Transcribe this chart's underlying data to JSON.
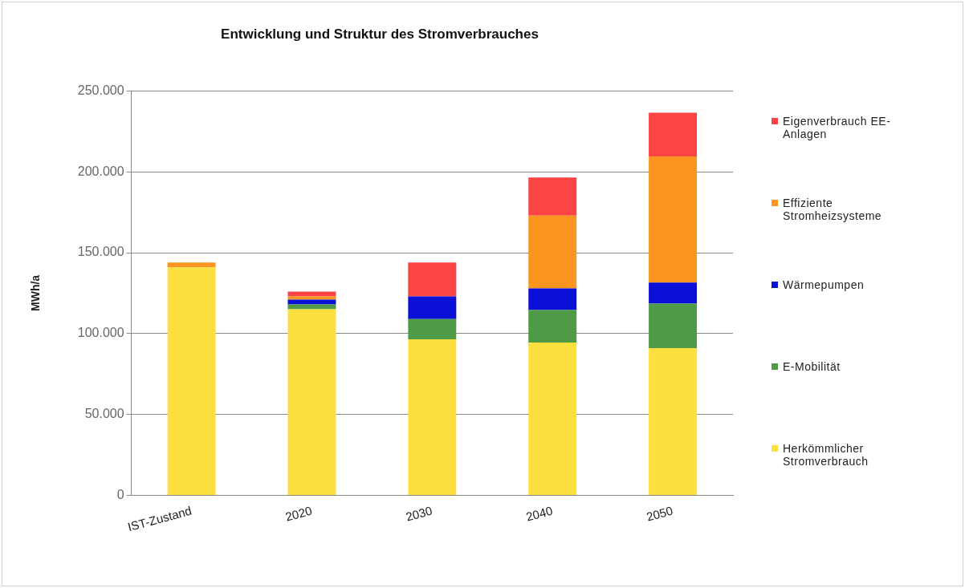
{
  "chart_data": {
    "type": "bar",
    "title": "Entwicklung und Struktur des Stromverbrauches",
    "ylabel": "MWh/a",
    "categories": [
      "IST-Zustand",
      "2020",
      "2030",
      "2040",
      "2050"
    ],
    "stacked": true,
    "series": [
      {
        "name": "Herkömmlicher Stromverbrauch",
        "color": "#fde03f",
        "values": [
          141000,
          115000,
          96500,
          94500,
          91000
        ]
      },
      {
        "name": "E-Mobilität",
        "color": "#4f9a47",
        "values": [
          null,
          3000,
          12500,
          20000,
          27500
        ]
      },
      {
        "name": "Wärmepumpen",
        "color": "#0a10d6",
        "values": [
          null,
          3000,
          14000,
          13500,
          13000
        ]
      },
      {
        "name": "Effiziente Stromheizsysteme",
        "color": "#fb951f",
        "values": [
          3000,
          2000,
          null,
          45000,
          78000
        ]
      },
      {
        "name": "Eigenverbrauch EE-Anlagen",
        "color": "#fb4444",
        "values": [
          null,
          3000,
          21000,
          23500,
          27000
        ]
      }
    ],
    "ylim": [
      0,
      250000
    ],
    "yticks": [
      {
        "value": 0,
        "label": "0"
      },
      {
        "value": 50000,
        "label": "50.000"
      },
      {
        "value": 100000,
        "label": "100.000"
      },
      {
        "value": 150000,
        "label": "150.000"
      },
      {
        "value": 200000,
        "label": "200.000"
      },
      {
        "value": 250000,
        "label": "250.000"
      }
    ],
    "grid": "y",
    "legend": "right"
  }
}
